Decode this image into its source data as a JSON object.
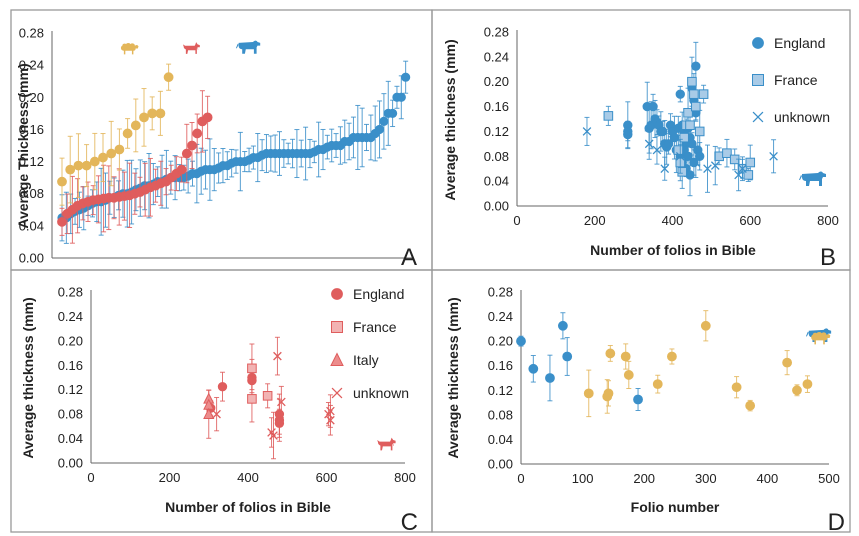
{
  "colors": {
    "england": "#3a8fc9",
    "france": "#a9cbe7",
    "cow": "#3a8fc9",
    "goat": "#df5d5d",
    "sheep": "#e3b65a",
    "panel_border": "#999999"
  },
  "chart_data": [
    {
      "panel": "A",
      "type": "scatter",
      "xlabel": "",
      "ylabel": "Average Thickness (mm)",
      "ylim": [
        0,
        0.28
      ],
      "yticks": [
        "0.00",
        "0.04",
        "0.08",
        "0.12",
        "0.16",
        "0.20",
        "0.24",
        "0.28"
      ],
      "icons": [
        "sheep-icon",
        "goat-icon",
        "cow-icon"
      ],
      "series": [
        {
          "animal": "sheep",
          "values": [
            0.095,
            0.11,
            0.115,
            0.115,
            0.12,
            0.125,
            0.13,
            0.135,
            0.155,
            0.165,
            0.175,
            0.18,
            0.18,
            0.225
          ]
        },
        {
          "animal": "goat",
          "values": [
            0.045,
            0.055,
            0.06,
            0.065,
            0.068,
            0.07,
            0.072,
            0.073,
            0.074,
            0.075,
            0.075,
            0.076,
            0.077,
            0.078,
            0.08,
            0.082,
            0.085,
            0.088,
            0.09,
            0.093,
            0.095,
            0.1,
            0.105,
            0.11,
            0.13,
            0.14,
            0.155,
            0.17,
            0.175
          ]
        },
        {
          "animal": "cow",
          "values": [
            0.05,
            0.05,
            0.055,
            0.058,
            0.06,
            0.062,
            0.065,
            0.068,
            0.07,
            0.07,
            0.072,
            0.075,
            0.075,
            0.078,
            0.08,
            0.08,
            0.082,
            0.085,
            0.087,
            0.09,
            0.09,
            0.092,
            0.095,
            0.095,
            0.098,
            0.1,
            0.1,
            0.1,
            0.1,
            0.102,
            0.105,
            0.105,
            0.108,
            0.11,
            0.11,
            0.11,
            0.112,
            0.115,
            0.115,
            0.118,
            0.12,
            0.12,
            0.12,
            0.122,
            0.125,
            0.125,
            0.128,
            0.13,
            0.13,
            0.13,
            0.13,
            0.13,
            0.13,
            0.13,
            0.13,
            0.13,
            0.13,
            0.13,
            0.132,
            0.135,
            0.135,
            0.138,
            0.14,
            0.14,
            0.14,
            0.145,
            0.145,
            0.15,
            0.15,
            0.15,
            0.15,
            0.15,
            0.155,
            0.16,
            0.17,
            0.18,
            0.18,
            0.2,
            0.2,
            0.225
          ]
        }
      ]
    },
    {
      "panel": "B",
      "type": "scatter",
      "xlabel": "Number of folios in Bible",
      "ylabel": "Average thickness (mm)",
      "xlim": [
        0,
        800
      ],
      "ylim": [
        0,
        0.28
      ],
      "xticks": [
        "0",
        "200",
        "400",
        "600",
        "800"
      ],
      "yticks": [
        "0.00",
        "0.04",
        "0.08",
        "0.12",
        "0.16",
        "0.20",
        "0.24",
        "0.28"
      ],
      "icon": "cow-icon",
      "series": [
        {
          "name": "England",
          "points": [
            [
              285,
              0.13
            ],
            [
              285,
              0.115
            ],
            [
              285,
              0.12
            ],
            [
              335,
              0.16
            ],
            [
              340,
              0.125
            ],
            [
              345,
              0.13
            ],
            [
              350,
              0.16
            ],
            [
              355,
              0.14
            ],
            [
              360,
              0.135
            ],
            [
              365,
              0.13
            ],
            [
              370,
              0.12
            ],
            [
              375,
              0.12
            ],
            [
              380,
              0.1
            ],
            [
              385,
              0.095
            ],
            [
              390,
              0.1
            ],
            [
              395,
              0.13
            ],
            [
              400,
              0.12
            ],
            [
              405,
              0.11
            ],
            [
              410,
              0.09
            ],
            [
              415,
              0.125
            ],
            [
              420,
              0.18
            ],
            [
              420,
              0.08
            ],
            [
              425,
              0.07
            ],
            [
              425,
              0.13
            ],
            [
              430,
              0.12
            ],
            [
              430,
              0.09
            ],
            [
              435,
              0.1
            ],
            [
              435,
              0.06
            ],
            [
              440,
              0.125
            ],
            [
              440,
              0.08
            ],
            [
              445,
              0.11
            ],
            [
              445,
              0.05
            ],
            [
              450,
              0.19
            ],
            [
              450,
              0.1
            ],
            [
              455,
              0.17
            ],
            [
              455,
              0.07
            ],
            [
              460,
              0.225
            ],
            [
              460,
              0.15
            ],
            [
              465,
              0.09
            ],
            [
              470,
              0.08
            ]
          ]
        },
        {
          "name": "France",
          "points": [
            [
              235,
              0.145
            ],
            [
              415,
              0.09
            ],
            [
              420,
              0.07
            ],
            [
              425,
              0.055
            ],
            [
              430,
              0.11
            ],
            [
              435,
              0.13
            ],
            [
              440,
              0.15
            ],
            [
              445,
              0.13
            ],
            [
              450,
              0.2
            ],
            [
              455,
              0.18
            ],
            [
              460,
              0.16
            ],
            [
              470,
              0.12
            ],
            [
              480,
              0.18
            ],
            [
              520,
              0.08
            ],
            [
              540,
              0.085
            ],
            [
              560,
              0.075
            ],
            [
              580,
              0.06
            ],
            [
              595,
              0.05
            ],
            [
              600,
              0.07
            ]
          ]
        },
        {
          "name": "unknown",
          "points": [
            [
              180,
              0.12
            ],
            [
              340,
              0.1
            ],
            [
              360,
              0.09
            ],
            [
              380,
              0.06
            ],
            [
              420,
              0.08
            ],
            [
              460,
              0.07
            ],
            [
              490,
              0.06
            ],
            [
              510,
              0.065
            ],
            [
              570,
              0.05
            ],
            [
              580,
              0.06
            ],
            [
              660,
              0.08
            ]
          ]
        }
      ]
    },
    {
      "panel": "C",
      "type": "scatter",
      "xlabel": "Number of folios in Bible",
      "ylabel": "Average thickness (mm)",
      "xlim": [
        0,
        800
      ],
      "ylim": [
        0,
        0.28
      ],
      "xticks": [
        "0",
        "200",
        "400",
        "600",
        "800"
      ],
      "yticks": [
        "0.00",
        "0.04",
        "0.08",
        "0.12",
        "0.16",
        "0.20",
        "0.24",
        "0.28"
      ],
      "icon": "goat-icon",
      "series": [
        {
          "name": "England",
          "points": [
            [
              305,
              0.09
            ],
            [
              335,
              0.125
            ],
            [
              410,
              0.14
            ],
            [
              410,
              0.135
            ],
            [
              480,
              0.07
            ],
            [
              480,
              0.065
            ],
            [
              480,
              0.08
            ]
          ]
        },
        {
          "name": "France",
          "points": [
            [
              410,
              0.155
            ],
            [
              410,
              0.105
            ],
            [
              450,
              0.11
            ]
          ]
        },
        {
          "name": "Italy",
          "points": [
            [
              300,
              0.105
            ],
            [
              300,
              0.095
            ],
            [
              300,
              0.08
            ]
          ]
        },
        {
          "name": "unknown",
          "points": [
            [
              320,
              0.08
            ],
            [
              460,
              0.05
            ],
            [
              465,
              0.045
            ],
            [
              475,
              0.175
            ],
            [
              485,
              0.1
            ],
            [
              605,
              0.08
            ],
            [
              610,
              0.085
            ],
            [
              610,
              0.07
            ]
          ]
        }
      ]
    },
    {
      "panel": "D",
      "type": "scatter",
      "xlabel": "Folio number",
      "ylabel": "Average thickness (mm)",
      "xlim": [
        0,
        500
      ],
      "ylim": [
        0,
        0.28
      ],
      "xticks": [
        "0",
        "100",
        "200",
        "300",
        "400",
        "500"
      ],
      "yticks": [
        "0.00",
        "0.04",
        "0.08",
        "0.12",
        "0.16",
        "0.20",
        "0.24",
        "0.28"
      ],
      "icons": [
        "cow-icon",
        "sheep-icon"
      ],
      "series": [
        {
          "animal": "cow",
          "points": [
            [
              0,
              0.2
            ],
            [
              20,
              0.155
            ],
            [
              47,
              0.14
            ],
            [
              68,
              0.225
            ],
            [
              75,
              0.175
            ],
            [
              190,
              0.105
            ]
          ]
        },
        {
          "animal": "sheep",
          "points": [
            [
              110,
              0.115
            ],
            [
              140,
              0.11
            ],
            [
              142,
              0.115
            ],
            [
              145,
              0.18
            ],
            [
              170,
              0.175
            ],
            [
              175,
              0.145
            ],
            [
              222,
              0.13
            ],
            [
              245,
              0.175
            ],
            [
              300,
              0.225
            ],
            [
              350,
              0.125
            ],
            [
              372,
              0.095
            ],
            [
              432,
              0.165
            ],
            [
              448,
              0.12
            ],
            [
              465,
              0.13
            ]
          ]
        }
      ]
    }
  ]
}
